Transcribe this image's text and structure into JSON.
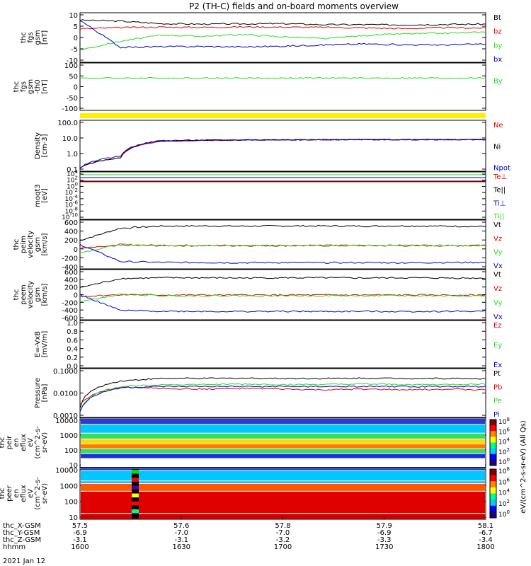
{
  "title": "P2 (TH-C) fields and on-board moments overview",
  "colors": {
    "black": "#000000",
    "red": "#e00000",
    "green": "#22dd22",
    "blue": "#0000cc",
    "yellow": "#ffee00"
  },
  "chart_data": [
    {
      "type": "line",
      "id": "fgs",
      "ylabel": [
        "thc",
        "fgs",
        "gsm",
        "[nT]"
      ],
      "ylim": [
        -10,
        10
      ],
      "yticks": [
        "10",
        "5",
        "0",
        "-5",
        "-10"
      ],
      "series": [
        {
          "name": "Bt",
          "color": "black",
          "values": [
            7,
            6.6,
            5.6,
            5.4,
            5.5,
            5.6,
            5.2,
            5.2,
            5.1,
            5.3,
            5.4
          ]
        },
        {
          "name": "bz",
          "color": "red",
          "values": [
            3.5,
            4,
            4.2,
            4.1,
            4.3,
            4.2,
            4.1,
            3.9,
            3.6,
            4.0,
            3.8
          ]
        },
        {
          "name": "by",
          "color": "green",
          "values": [
            -5,
            -1.5,
            1,
            0.5,
            1.2,
            0.3,
            -0.5,
            0.8,
            1.5,
            1.7,
            2.2
          ]
        },
        {
          "name": "bx",
          "color": "blue",
          "values": [
            7,
            -4,
            -3.7,
            -3.6,
            -3.8,
            -3.5,
            -3.0,
            -2.6,
            -2.9,
            -3.0,
            -2.6
          ]
        }
      ]
    },
    {
      "type": "line",
      "id": "fgs_th",
      "ylabel": [
        "thc",
        "fgs",
        "gsm",
        "-th0",
        "[nT]"
      ],
      "ylim": [
        -125,
        110
      ],
      "yticks": [
        "100",
        "50",
        "0",
        "-50",
        "-100"
      ],
      "series": [
        {
          "name": "By",
          "color": "green",
          "values": [
            35,
            35,
            35,
            35,
            35,
            35,
            35,
            35,
            35,
            35,
            35
          ]
        }
      ]
    },
    {
      "type": "line",
      "id": "density",
      "ylabel": [
        "Density",
        "[cm-3]"
      ],
      "log": true,
      "ylim": [
        0.03,
        200
      ],
      "yticks": [
        "100.0",
        "10.0",
        "1.0",
        "0.1"
      ],
      "series": [
        {
          "name": "Ne",
          "color": "red",
          "values": [
            0.05,
            0.3,
            5,
            6,
            6.5,
            6.8,
            6.9,
            7,
            7,
            7,
            7
          ]
        },
        {
          "name": "Ni",
          "color": "black",
          "values": [
            0.05,
            0.3,
            5.5,
            6.2,
            6.6,
            6.8,
            6.9,
            7,
            7,
            7,
            7
          ]
        },
        {
          "name": "Npot",
          "color": "blue",
          "values": [
            0.05,
            0.4,
            6,
            6.5,
            6.7,
            6.9,
            7,
            7,
            7.1,
            7.1,
            7.1
          ]
        }
      ]
    },
    {
      "type": "line",
      "id": "temp",
      "ylabel": [
        "moqt3",
        "[eV]"
      ],
      "log": true,
      "yticks": [
        "10^4",
        "10^2",
        "10^0",
        "10^-2",
        "10^-4",
        "10^-6",
        "10^-8",
        "10^-10"
      ],
      "series": [
        {
          "name": "Te⊥",
          "color": "red"
        },
        {
          "name": "Te||",
          "color": "black"
        },
        {
          "name": "Ti⊥",
          "color": "blue"
        },
        {
          "name": "Ti||",
          "color": "green"
        }
      ]
    },
    {
      "type": "line",
      "id": "peim_vel",
      "ylabel": [
        "thc",
        "peim",
        "velocity",
        "gsm",
        "[km/s]"
      ],
      "ylim": [
        -600,
        600
      ],
      "yticks": [
        "600",
        "400",
        "200",
        "0",
        "-200",
        "-400"
      ],
      "series": [
        {
          "name": "Vt",
          "color": "black",
          "values": [
            100,
            400,
            450,
            455,
            450,
            455,
            455,
            450,
            455,
            450,
            440
          ]
        },
        {
          "name": "Vz",
          "color": "red",
          "values": [
            -100,
            -20,
            -30,
            -30,
            -30,
            -30,
            -30,
            -30,
            -30,
            -30,
            -30
          ]
        },
        {
          "name": "Vy",
          "color": "green",
          "values": [
            -200,
            0,
            -20,
            -20,
            -25,
            -20,
            -20,
            -20,
            -20,
            -20,
            -20
          ]
        },
        {
          "name": "Vx",
          "color": "blue",
          "values": [
            0,
            -420,
            -440,
            -445,
            -450,
            -445,
            -450,
            -445,
            -450,
            -445,
            -440
          ]
        }
      ]
    },
    {
      "type": "line",
      "id": "peem_vel",
      "ylabel": [
        "thc",
        "peem",
        "velocity",
        "gsm",
        "[km/s]"
      ],
      "ylim": [
        -700,
        700
      ],
      "yticks": [
        "600",
        "400",
        "200",
        "0",
        "-200",
        "-400",
        "-600"
      ],
      "series": [
        {
          "name": "Vt",
          "color": "black",
          "values": [
            200,
            450,
            470,
            470,
            465,
            470,
            470,
            465,
            470,
            465,
            460
          ]
        },
        {
          "name": "Vz",
          "color": "red",
          "values": [
            -50,
            0,
            -10,
            -10,
            -10,
            -10,
            -10,
            -10,
            -10,
            -10,
            -10
          ]
        },
        {
          "name": "Vy",
          "color": "green",
          "values": [
            -200,
            10,
            -30,
            -30,
            -30,
            -30,
            -30,
            -30,
            -30,
            -30,
            -30
          ]
        },
        {
          "name": "Vx",
          "color": "blue",
          "values": [
            0,
            -440,
            -460,
            -465,
            -470,
            -465,
            -470,
            -465,
            -470,
            -465,
            -460
          ]
        }
      ]
    },
    {
      "type": "line",
      "id": "efield",
      "ylabel": [
        "E=-VxB",
        "[mV/m]"
      ],
      "ylim": [
        0,
        1
      ],
      "yticks": [
        "1.0",
        "0.8",
        "0.6",
        "0.4",
        "0.2",
        "0.0"
      ],
      "series": [
        {
          "name": "Ez",
          "color": "red"
        },
        {
          "name": "Ey",
          "color": "green"
        },
        {
          "name": "Ex",
          "color": "blue"
        }
      ]
    },
    {
      "type": "line",
      "id": "pressure",
      "ylabel": [
        "Pressure",
        "[nPa]"
      ],
      "log": true,
      "ylim": [
        0.0005,
        0.12
      ],
      "yticks": [
        "0.1000",
        "0.0100",
        "0.0010"
      ],
      "series": [
        {
          "name": "Pt",
          "color": "black",
          "values": [
            0.0015,
            0.03,
            0.04,
            0.04,
            0.041,
            0.04,
            0.04,
            0.041,
            0.04,
            0.04,
            0.039
          ]
        },
        {
          "name": "Pb",
          "color": "red",
          "values": [
            0.002,
            0.015,
            0.013,
            0.012,
            0.013,
            0.012,
            0.011,
            0.012,
            0.011,
            0.012,
            0.011
          ]
        },
        {
          "name": "Pe",
          "color": "green",
          "values": [
            0.001,
            0.016,
            0.02,
            0.02,
            0.021,
            0.02,
            0.02,
            0.021,
            0.02,
            0.02,
            0.021
          ]
        },
        {
          "name": "Pi",
          "color": "blue",
          "values": [
            0.001,
            0.014,
            0.016,
            0.016,
            0.016,
            0.016,
            0.016,
            0.016,
            0.016,
            0.016,
            0.016
          ]
        }
      ]
    },
    {
      "type": "heatmap",
      "id": "peir",
      "ylabel": [
        "thc",
        "peir",
        "en",
        "eflux",
        "eV",
        "(cm^2-s-",
        "sr-eV)"
      ],
      "yticks": [
        "10000",
        "1000",
        "100",
        "10"
      ],
      "colorbar": {
        "ticks": [
          "10^8",
          "10^6",
          "10^4",
          "10^2",
          "10^0"
        ],
        "label": "eV/(cm^2-s-sr-eV) (All Qs)"
      }
    },
    {
      "type": "heatmap",
      "id": "peer",
      "ylabel": [
        "thc",
        "peer",
        "en",
        "eflux",
        "eV",
        "(cm^2-s-",
        "sr-eV)"
      ],
      "yticks": [
        "10000",
        "1000",
        "100",
        "10"
      ],
      "colorbar": {
        "ticks": [
          "10^8",
          "10^6",
          "10^4",
          "10^2",
          "10^0"
        ],
        "label": "eV/(cm^2-s-sr-eV) (All Qs)"
      }
    }
  ],
  "xaxis": {
    "rows": [
      {
        "label": "thc_X-GSM",
        "values": [
          "57.5",
          "57.6",
          "57.8",
          "57.9",
          "58.1"
        ]
      },
      {
        "label": "thc_Y-GSM",
        "values": [
          "-6.9",
          "-7.0",
          "-7.0",
          "-6.9",
          "-6.7"
        ]
      },
      {
        "label": "thc_Z-GSM",
        "values": [
          "-3.1",
          "-3.1",
          "-3.2",
          "-3.3",
          "-3.4"
        ]
      },
      {
        "label": "hhmm",
        "values": [
          "1600",
          "1630",
          "1700",
          "1730",
          "1800"
        ]
      }
    ],
    "date": "2021 Jan 12"
  }
}
